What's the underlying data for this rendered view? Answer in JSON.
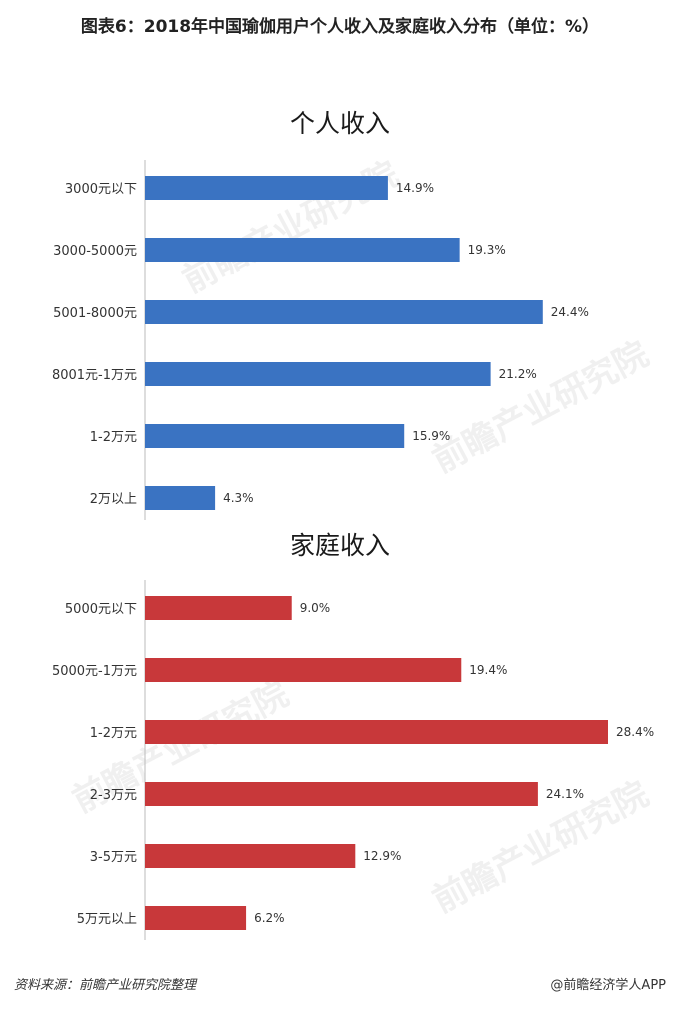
{
  "title": "图表6：2018年中国瑜伽用户个人收入及家庭收入分布（单位：%）",
  "watermark_text": "前瞻产业研究院",
  "source": "资料来源：前瞻产业研究院整理",
  "credit": "@前瞻经济学人APP",
  "chart_data": [
    {
      "type": "bar",
      "orientation": "horizontal",
      "title": "个人收入",
      "categories": [
        "3000元以下",
        "3000-5000元",
        "5001-8000元",
        "8001元-1万元",
        "1-2万元",
        "2万以上"
      ],
      "values": [
        14.9,
        19.3,
        24.4,
        21.2,
        15.9,
        4.3
      ],
      "value_labels": [
        "14.9%",
        "19.3%",
        "24.4%",
        "21.2%",
        "15.9%",
        "4.3%"
      ],
      "xlim": [
        0,
        28.4
      ],
      "color": "#3a73c2",
      "grid": false
    },
    {
      "type": "bar",
      "orientation": "horizontal",
      "title": "家庭收入",
      "categories": [
        "5000元以下",
        "5000元-1万元",
        "1-2万元",
        "2-3万元",
        "3-5万元",
        "5万元以上"
      ],
      "values": [
        9.0,
        19.4,
        28.4,
        24.1,
        12.9,
        6.2
      ],
      "value_labels": [
        "9.0%",
        "19.4%",
        "28.4%",
        "24.1%",
        "12.9%",
        "6.2%"
      ],
      "xlim": [
        0,
        28.4
      ],
      "color": "#c8383a",
      "grid": false
    }
  ]
}
